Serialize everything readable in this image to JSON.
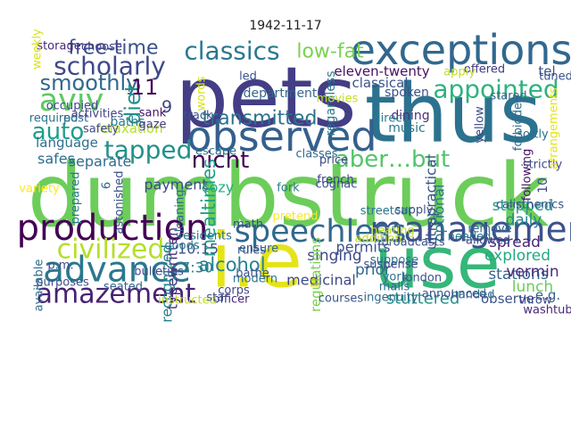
{
  "chart_data": {
    "type": "wordcloud",
    "title": "1942-11-17",
    "words": [
      {
        "text": "dumbstruck",
        "weight": 1.0,
        "color": "#6ccd5a"
      },
      {
        "text": "pets",
        "weight": 0.95,
        "color": "#433e85"
      },
      {
        "text": "thus",
        "weight": 0.92,
        "color": "#2c728e"
      },
      {
        "text": "i.e.",
        "weight": 0.86,
        "color": "#e5e419"
      },
      {
        "text": "use",
        "weight": 0.8,
        "color": "#35b779"
      },
      {
        "text": "exceptions",
        "weight": 0.42,
        "color": "#31688e"
      },
      {
        "text": "observed",
        "weight": 0.42,
        "color": "#35608d"
      },
      {
        "text": "production",
        "weight": 0.36,
        "color": "#440154"
      },
      {
        "text": "management",
        "weight": 0.34,
        "color": "#3b528b"
      },
      {
        "text": "advance",
        "weight": 0.34,
        "color": "#2a788e"
      },
      {
        "text": "speechless",
        "weight": 0.3,
        "color": "#31688e"
      },
      {
        "text": "aviv",
        "weight": 0.3,
        "color": "#5ec962"
      },
      {
        "text": "amazement",
        "weight": 0.24,
        "color": "#482173"
      },
      {
        "text": "civilized",
        "weight": 0.24,
        "color": "#b5de2b"
      },
      {
        "text": "classics",
        "weight": 0.22,
        "color": "#2a788e"
      },
      {
        "text": "scholarly",
        "weight": 0.22,
        "color": "#3e4989"
      },
      {
        "text": "appointed",
        "weight": 0.22,
        "color": "#2db27d"
      },
      {
        "text": "tapped",
        "weight": 0.22,
        "color": "#21918c"
      },
      {
        "text": "aber…but",
        "weight": 0.2,
        "color": "#52c569"
      },
      {
        "text": "nicht",
        "weight": 0.2,
        "color": "#440154"
      },
      {
        "text": "auto",
        "weight": 0.2,
        "color": "#1f9e89"
      },
      {
        "text": "smoothly",
        "weight": 0.18,
        "color": "#31688e"
      },
      {
        "text": "diet",
        "weight": 0.18,
        "color": "#21918c"
      },
      {
        "text": "11",
        "weight": 0.18,
        "color": "#440154"
      },
      {
        "text": "transmitted",
        "weight": 0.15,
        "color": "#2c728e"
      },
      {
        "text": "free-time",
        "weight": 0.15,
        "color": "#3b528b"
      },
      {
        "text": "low-fat",
        "weight": 0.15,
        "color": "#7ad151"
      },
      {
        "text": "mealtimes",
        "weight": 0.14,
        "color": "#1fa187"
      },
      {
        "text": "alcohol",
        "weight": 0.14,
        "color": "#26828e"
      },
      {
        "text": "9",
        "weight": 0.12,
        "color": "#414487"
      },
      {
        "text": "stuttered",
        "weight": 0.11,
        "color": "#21918c"
      },
      {
        "text": "singing",
        "weight": 0.1,
        "color": "#3e4989"
      },
      {
        "text": "explored",
        "weight": 0.1,
        "color": "#22a884"
      },
      {
        "text": "stations",
        "weight": 0.1,
        "color": "#33638d"
      },
      {
        "text": "lunch",
        "weight": 0.1,
        "color": "#6ccd5a"
      },
      {
        "text": "prior",
        "weight": 0.1,
        "color": "#31688e"
      },
      {
        "text": "spread",
        "weight": 0.1,
        "color": "#482878"
      },
      {
        "text": "vermin",
        "weight": 0.1,
        "color": "#472d7b"
      },
      {
        "text": "daily",
        "weight": 0.1,
        "color": "#25858e"
      },
      {
        "text": "stepped",
        "weight": 0.1,
        "color": "#1f9a8a"
      },
      {
        "text": "optional",
        "weight": 0.09,
        "color": "#2a788e"
      },
      {
        "text": "ultrapractical",
        "weight": 0.09,
        "color": "#3b528b"
      },
      {
        "text": "medicinal",
        "weight": 0.09,
        "color": "#3f4889"
      },
      {
        "text": "permits",
        "weight": 0.09,
        "color": "#3b528b"
      },
      {
        "text": "typewritten",
        "weight": 0.09,
        "color": "#482878"
      },
      {
        "text": "recognized",
        "weight": 0.09,
        "color": "#26828e"
      },
      {
        "text": "10:15",
        "weight": 0.09,
        "color": "#3b528b"
      },
      {
        "text": "7:30",
        "weight": 0.09,
        "color": "#287c8e"
      },
      {
        "text": "payment",
        "weight": 0.09,
        "color": "#3e4989"
      },
      {
        "text": "cozy",
        "weight": 0.09,
        "color": "#25ac82"
      },
      {
        "text": "safes",
        "weight": 0.09,
        "color": "#2e6e8e"
      },
      {
        "text": "separate",
        "weight": 0.09,
        "color": "#2e6e8e"
      },
      {
        "text": "language",
        "weight": 0.08,
        "color": "#2e6e8e"
      },
      {
        "text": "relaxation",
        "weight": 0.08,
        "color": "#b5de2b"
      },
      {
        "text": "eleven-twenty",
        "weight": 0.08,
        "color": "#471063"
      },
      {
        "text": "classical",
        "weight": 0.08,
        "color": "#3b528b"
      },
      {
        "text": "regulations",
        "weight": 0.08,
        "color": "#7ad151"
      },
      {
        "text": "observe",
        "weight": 0.08,
        "color": "#3b528b"
      },
      {
        "text": "e.g.",
        "weight": 0.08,
        "color": "#35608d"
      },
      {
        "text": "tel",
        "weight": 0.08,
        "color": "#3b528b"
      },
      {
        "text": "regardless",
        "weight": 0.07,
        "color": "#2a788e"
      },
      {
        "text": "department",
        "weight": 0.07,
        "color": "#31688e"
      },
      {
        "text": "spoken",
        "weight": 0.07,
        "color": "#3b528b"
      },
      {
        "text": "dining",
        "weight": 0.07,
        "color": "#472d7b"
      },
      {
        "text": "music",
        "weight": 0.07,
        "color": "#2a788e"
      },
      {
        "text": "baths",
        "weight": 0.07,
        "color": "#287c8e"
      },
      {
        "text": "safety",
        "weight": 0.06,
        "color": "#3e4989"
      },
      {
        "text": "gaze",
        "weight": 0.06,
        "color": "#443983"
      },
      {
        "text": "post",
        "weight": 0.06,
        "color": "#31688e"
      },
      {
        "text": "required",
        "weight": 0.06,
        "color": "#2c728e"
      },
      {
        "text": "activities",
        "weight": 0.06,
        "color": "#414487"
      },
      {
        "text": "occupied",
        "weight": 0.06,
        "color": "#3e4989"
      },
      {
        "text": "storage",
        "weight": 0.06,
        "color": "#482878"
      },
      {
        "text": "choose",
        "weight": 0.06,
        "color": "#443983"
      },
      {
        "text": "weekly",
        "weight": 0.06,
        "color": "#d8e219"
      },
      {
        "text": "led",
        "weight": 0.05,
        "color": "#3b528b"
      },
      {
        "text": "sank",
        "weight": 0.05,
        "color": "#471063"
      },
      {
        "text": "track",
        "weight": 0.05,
        "color": "#3b528b"
      },
      {
        "text": "words",
        "weight": 0.05,
        "color": "#d8e219"
      },
      {
        "text": "escape",
        "weight": 0.05,
        "color": "#2c728e"
      },
      {
        "text": "classes",
        "weight": 0.05,
        "color": "#31688e"
      },
      {
        "text": "price",
        "weight": 0.05,
        "color": "#3e4989"
      },
      {
        "text": "movies",
        "weight": 0.05,
        "color": "#c2df23"
      },
      {
        "text": "direct",
        "weight": 0.05,
        "color": "#2a788e"
      },
      {
        "text": "cognac",
        "weight": 0.06,
        "color": "#3b528b"
      },
      {
        "text": "french",
        "weight": 0.05,
        "color": "#414487"
      },
      {
        "text": "supply",
        "weight": 0.06,
        "color": "#3b528b"
      },
      {
        "text": "following",
        "weight": 0.06,
        "color": "#471063"
      },
      {
        "text": "strictly",
        "weight": 0.06,
        "color": "#3e4989"
      },
      {
        "text": "softly",
        "weight": 0.05,
        "color": "#2c728e"
      },
      {
        "text": "stared",
        "weight": 0.05,
        "color": "#35608d"
      },
      {
        "text": "tuned",
        "weight": 0.05,
        "color": "#3b528b"
      },
      {
        "text": "offered",
        "weight": 0.05,
        "color": "#443983"
      },
      {
        "text": "apply",
        "weight": 0.05,
        "color": "#c2df23"
      },
      {
        "text": "yellow",
        "weight": 0.05,
        "color": "#3e4989"
      },
      {
        "text": "forbidden",
        "weight": 0.05,
        "color": "#2e6e8e"
      },
      {
        "text": "arrangements",
        "weight": 0.05,
        "color": "#e5e419"
      },
      {
        "text": "suppose",
        "weight": 0.05,
        "color": "#2c728e"
      },
      {
        "text": "london",
        "weight": 0.05,
        "color": "#3b528b"
      },
      {
        "text": "york",
        "weight": 0.05,
        "color": "#2e6e8e"
      },
      {
        "text": "malls",
        "weight": 0.05,
        "color": "#31688e"
      },
      {
        "text": "suspense",
        "weight": 0.05,
        "color": "#3e4989"
      },
      {
        "text": "broadcasts",
        "weight": 0.05,
        "color": "#3b528b"
      },
      {
        "text": "heating",
        "weight": 0.05,
        "color": "#c2df23"
      },
      {
        "text": "streetcar",
        "weight": 0.05,
        "color": "#2a788e"
      },
      {
        "text": "ingenuity",
        "weight": 0.05,
        "color": "#31688e"
      },
      {
        "text": "courses",
        "weight": 0.05,
        "color": "#3b528b"
      },
      {
        "text": "modern",
        "weight": 0.05,
        "color": "#2c728e"
      },
      {
        "text": "officer",
        "weight": 0.05,
        "color": "#482878"
      },
      {
        "text": "instructed",
        "weight": 0.05,
        "color": "#c2df23"
      },
      {
        "text": "corps",
        "weight": 0.05,
        "color": "#3e4989"
      },
      {
        "text": "bathe",
        "weight": 0.05,
        "color": "#3b528b"
      },
      {
        "text": "fork",
        "weight": 0.05,
        "color": "#2a788e"
      },
      {
        "text": "pretend",
        "weight": 0.05,
        "color": "#fde725"
      },
      {
        "text": "ensure",
        "weight": 0.05,
        "color": "#31688e"
      },
      {
        "text": "rules",
        "weight": 0.05,
        "color": "#3b528b"
      },
      {
        "text": "goods",
        "weight": 0.05,
        "color": "#2a788e"
      },
      {
        "text": "math",
        "weight": 0.05,
        "color": "#3e4989"
      },
      {
        "text": "star",
        "weight": 0.05,
        "color": "#3b528b"
      },
      {
        "text": "residents",
        "weight": 0.05,
        "color": "#2c728e"
      },
      {
        "text": "cleaning",
        "weight": 0.05,
        "color": "#31688e"
      },
      {
        "text": "bulletins",
        "weight": 0.05,
        "color": "#3e4989"
      },
      {
        "text": "seated",
        "weight": 0.05,
        "color": "#35608d"
      },
      {
        "text": "purposes",
        "weight": 0.05,
        "color": "#3b528b"
      },
      {
        "text": "available",
        "weight": 0.05,
        "color": "#2e6e8e"
      },
      {
        "text": "p.m.",
        "weight": 0.05,
        "color": "#3e4989"
      },
      {
        "text": "variety",
        "weight": 0.05,
        "color": "#fde725"
      },
      {
        "text": "prepared",
        "weight": 0.05,
        "color": "#2a788e"
      },
      {
        "text": "astonished",
        "weight": 0.05,
        "color": "#3b528b"
      },
      {
        "text": "washtub",
        "weight": 0.05,
        "color": "#482878"
      },
      {
        "text": "throw",
        "weight": 0.05,
        "color": "#3e4989"
      },
      {
        "text": "handed",
        "weight": 0.05,
        "color": "#2c728e"
      },
      {
        "text": "announced",
        "weight": 0.05,
        "color": "#3b528b"
      },
      {
        "text": "needed",
        "weight": 0.05,
        "color": "#2a788e"
      },
      {
        "text": "allowed",
        "weight": 0.05,
        "color": "#3e4989"
      },
      {
        "text": "remove",
        "weight": 0.05,
        "color": "#31688e"
      },
      {
        "text": "addition",
        "weight": 0.05,
        "color": "#c2df23"
      },
      {
        "text": "calisthenics",
        "weight": 0.05,
        "color": "#3b528b"
      },
      {
        "text": "10",
        "weight": 0.07,
        "color": "#3e4989"
      },
      {
        "text": "6",
        "weight": 0.05,
        "color": "#31688e"
      }
    ]
  }
}
